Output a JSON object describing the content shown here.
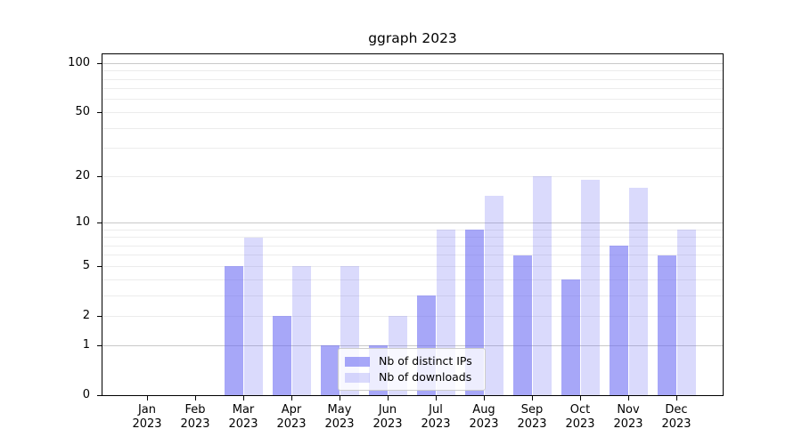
{
  "figure": {
    "background": "#ffffff"
  },
  "chart_data": {
    "type": "bar",
    "title": "ggraph 2023",
    "categories": [
      "Jan 2023",
      "Feb 2023",
      "Mar 2023",
      "Apr 2023",
      "May 2023",
      "Jun 2023",
      "Jul 2023",
      "Aug 2023",
      "Sep 2023",
      "Oct 2023",
      "Nov 2023",
      "Dec 2023"
    ],
    "categories_two_line": [
      {
        "month": "Jan",
        "year": "2023"
      },
      {
        "month": "Feb",
        "year": "2023"
      },
      {
        "month": "Mar",
        "year": "2023"
      },
      {
        "month": "Apr",
        "year": "2023"
      },
      {
        "month": "May",
        "year": "2023"
      },
      {
        "month": "Jun",
        "year": "2023"
      },
      {
        "month": "Jul",
        "year": "2023"
      },
      {
        "month": "Aug",
        "year": "2023"
      },
      {
        "month": "Sep",
        "year": "2023"
      },
      {
        "month": "Oct",
        "year": "2023"
      },
      {
        "month": "Nov",
        "year": "2023"
      },
      {
        "month": "Dec",
        "year": "2023"
      }
    ],
    "series": [
      {
        "name": "Nb of distinct IPs",
        "values": [
          0,
          0,
          5,
          2,
          1,
          1,
          3,
          9,
          6,
          4,
          7,
          6
        ],
        "color": "rgba(100,100,243,0.57)"
      },
      {
        "name": "Nb of downloads",
        "values": [
          0,
          0,
          8,
          5,
          5,
          2,
          9,
          15,
          20,
          19,
          17,
          9
        ],
        "color": "rgba(100,100,243,0.24)"
      }
    ],
    "xlabel": "",
    "ylabel": "",
    "yscale": "log10(1+x)",
    "ylim": [
      0,
      113
    ],
    "y_ticks": [
      0,
      1,
      2,
      5,
      10,
      20,
      50,
      100
    ],
    "grid": {
      "on": true,
      "major_values": [
        1,
        10,
        100
      ],
      "minor_values": [
        2,
        3,
        4,
        5,
        6,
        7,
        8,
        9,
        20,
        30,
        40,
        50,
        60,
        70,
        80,
        90
      ],
      "major_color": "#c9c9c9",
      "minor_color": "#ececec"
    },
    "legend": {
      "position": "lower center",
      "entries": [
        "Nb of distinct IPs",
        "Nb of downloads"
      ]
    }
  }
}
